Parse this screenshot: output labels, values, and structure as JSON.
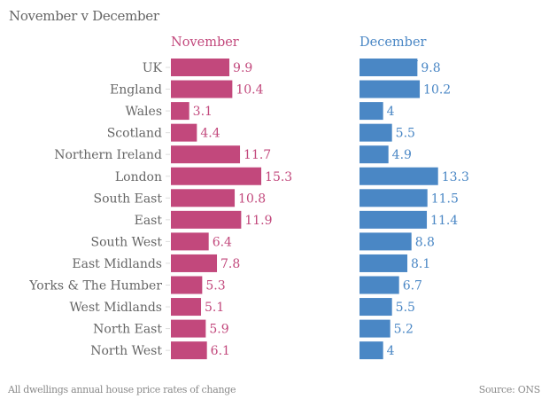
{
  "chart_data": {
    "type": "bar",
    "orientation": "horizontal",
    "title": "November v December",
    "categories": [
      "UK",
      "England",
      "Wales",
      "Scotland",
      "Northern Ireland",
      "London",
      "South East",
      "East",
      "South West",
      "East Midlands",
      "Yorks & The Humber",
      "West Midlands",
      "North East",
      "North West"
    ],
    "series": [
      {
        "name": "November",
        "color": "#c2487c",
        "label_color": "#c2487c",
        "values": [
          9.9,
          10.4,
          3.1,
          4.4,
          11.7,
          15.3,
          10.8,
          11.9,
          6.4,
          7.8,
          5.3,
          5.1,
          5.9,
          6.1
        ],
        "labels": [
          "9.9",
          "10.4",
          "3.1",
          "4.4",
          "11.7",
          "15.3",
          "10.8",
          "11.9",
          "6.4",
          "7.8",
          "5.3",
          "5.1",
          "5.9",
          "6.1"
        ]
      },
      {
        "name": "December",
        "color": "#4a87c5",
        "label_color": "#4a87c5",
        "values": [
          9.8,
          10.2,
          4,
          5.5,
          4.9,
          13.3,
          11.5,
          11.4,
          8.8,
          8.1,
          6.7,
          5.5,
          5.2,
          4
        ],
        "labels": [
          "9.8",
          "10.2",
          "4",
          "5.5",
          "4.9",
          "13.3",
          "11.5",
          "11.4",
          "8.8",
          "8.1",
          "6.7",
          "5.5",
          "5.2",
          "4"
        ]
      }
    ],
    "xlabel": "",
    "ylabel": "",
    "xlim": [
      0,
      15.3
    ],
    "grid": false,
    "layout": "small-multiples side-by-side",
    "footnote": "All dwellings annual house price rates of change",
    "source": "Source: ONS"
  }
}
